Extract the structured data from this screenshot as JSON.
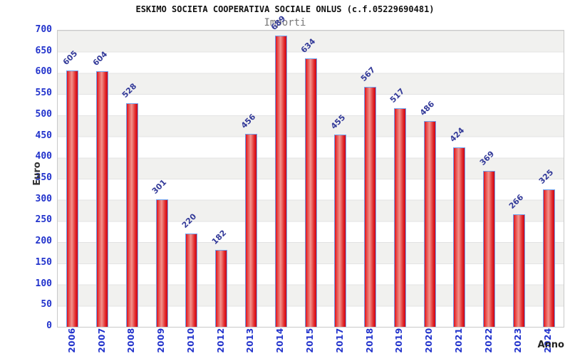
{
  "header": {
    "title": "ESKIMO SOCIETA COOPERATIVA SOCIALE ONLUS (c.f.05229690481)",
    "subtitle": "Importi"
  },
  "axes": {
    "y_label": "Euro",
    "x_label": "Anno",
    "y_ticks": [
      0,
      50,
      100,
      150,
      200,
      250,
      300,
      350,
      400,
      450,
      500,
      550,
      600,
      650,
      700
    ]
  },
  "chart_data": {
    "type": "bar",
    "title": "ESKIMO SOCIETA COOPERATIVA SOCIALE ONLUS (c.f.05229690481)",
    "subtitle": "Importi",
    "xlabel": "Anno",
    "ylabel": "Euro",
    "categories": [
      "2006",
      "2007",
      "2008",
      "2009",
      "2010",
      "2012",
      "2013",
      "2014",
      "2015",
      "2017",
      "2018",
      "2019",
      "2020",
      "2021",
      "2022",
      "2023",
      "2024"
    ],
    "values": [
      605,
      604,
      528,
      301,
      220,
      182,
      456,
      689,
      634,
      455,
      567,
      517,
      486,
      424,
      369,
      266,
      325
    ],
    "ylim": [
      0,
      700
    ],
    "ytick_step": 50,
    "grid": "horizontal-bands",
    "legend": "none",
    "colors": {
      "bar_edge_red": "#de0c20",
      "bar_highlight": "#f2928c",
      "bar_border_blue": "#6fa3ee",
      "axis_tick_text": "#2233cc",
      "value_label_text": "#333a99",
      "band_gray": "#f1f1ef",
      "band_white": "#ffffff",
      "plot_border": "#c9c9c9",
      "title_text": "#111111",
      "subtitle_text": "#777777",
      "axis_title_text": "#333333"
    }
  }
}
